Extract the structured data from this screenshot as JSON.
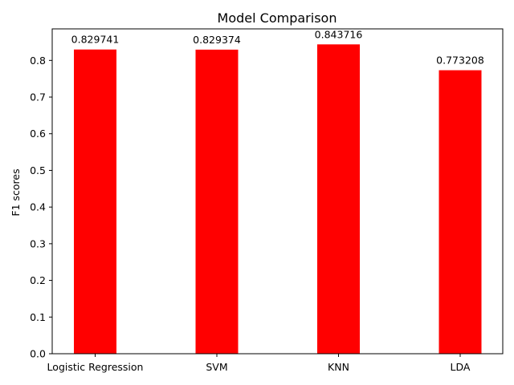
{
  "chart_data": {
    "type": "bar",
    "title": "Model Comparison",
    "xlabel": "",
    "ylabel": "F1 scores",
    "categories": [
      "Logistic Regression",
      "SVM",
      "KNN",
      "LDA"
    ],
    "values": [
      0.829741,
      0.829374,
      0.843716,
      0.773208
    ],
    "value_labels": [
      "0.829741",
      "0.829374",
      "0.843716",
      "0.773208"
    ],
    "ylim": [
      0,
      0.886
    ],
    "yticks": [
      0.0,
      0.1,
      0.2,
      0.3,
      0.4,
      0.5,
      0.6,
      0.7,
      0.8
    ],
    "ytick_labels": [
      "0.0",
      "0.1",
      "0.2",
      "0.3",
      "0.4",
      "0.5",
      "0.6",
      "0.7",
      "0.8"
    ],
    "bar_color": "#ff0000",
    "grid": false,
    "legend": "none"
  }
}
